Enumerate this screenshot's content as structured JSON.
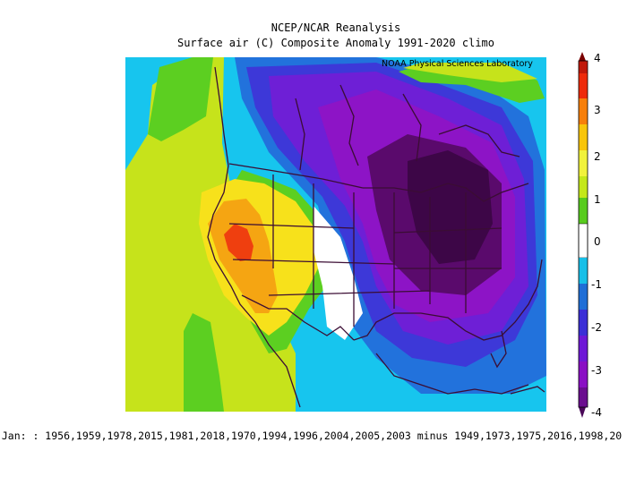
{
  "title_line1": "NCEP/NCAR Reanalysis",
  "title_line2": "Surface air (C) Composite Anomaly 1991-2020 climo",
  "credit": "NOAA Physical Sciences Laboratory",
  "footer": "o Jan: : 1956,1959,1978,2015,1981,2018,1970,1994,1996,2004,2005,2003 minus 1949,1973,1975,2016,1998,20",
  "colorbar": {
    "labels": [
      "4",
      "3",
      "2",
      "1",
      "0",
      "-1",
      "-2",
      "-3",
      "-4"
    ],
    "colors": [
      "#7a0000",
      "#ee2a0b",
      "#f77f0a",
      "#f8c50a",
      "#f1f23b",
      "#c4e81a",
      "#58cc1e",
      "#ffffff",
      "#17bfe8",
      "#1f6ed6",
      "#3b2fd6",
      "#6e18d6",
      "#8a0fc4",
      "#4a0858"
    ]
  },
  "map": {
    "region": "North America",
    "colors": {
      "ocean_green": "#c6e31b",
      "green": "#5ccf21",
      "yellow": "#f7e11b",
      "orange": "#f5a512",
      "red": "#ef3f0f",
      "cyan": "#17c5ee",
      "blue": "#2272dc",
      "indigo": "#3d38d8",
      "violet": "#6e1fd6",
      "purple": "#8d14c6",
      "deep": "#5a0a6c",
      "darkest": "#3d0647",
      "border": "#3b0d34"
    }
  }
}
